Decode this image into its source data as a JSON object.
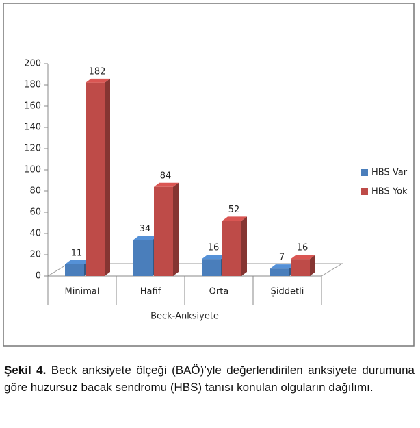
{
  "chart_data": {
    "type": "bar3d",
    "x_label": "Beck-Anksiyete",
    "categories": [
      "Minimal",
      "Hafif",
      "Orta",
      "Şiddetli"
    ],
    "series": [
      {
        "name": "HBS Var",
        "color": "#4a7ebb",
        "values": [
          11,
          34,
          16,
          7
        ]
      },
      {
        "name": "HBS Yok",
        "color": "#be4b48",
        "values": [
          182,
          84,
          52,
          16
        ]
      }
    ],
    "ylim": [
      0,
      200
    ],
    "yticks": [
      0,
      20,
      40,
      60,
      80,
      100,
      120,
      140,
      160,
      180,
      200
    ],
    "legend": "right"
  },
  "caption": {
    "label": "Şekil 4.",
    "text": "Beck anksiyete ölçeği (BAÖ)’yle değerlendirilen anksiyete durumuna göre huzursuz bacak sendromu (HBS) tanısı konulan olguların dağılımı."
  }
}
